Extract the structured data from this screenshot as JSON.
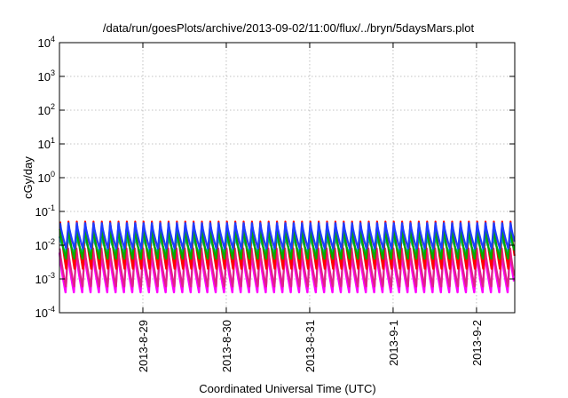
{
  "chart_data": {
    "type": "line",
    "title": "/data/run/goesPlots/archive/2013-09-02/11:00/flux/../bryn/5daysMars.plot",
    "xlabel": "Coordinated Universal Time (UTC)",
    "ylabel": "cGy/day",
    "x_range": [
      "2013-08-28T00:00",
      "2013-09-02T11:00"
    ],
    "x_ticks": [
      "2013-8-29",
      "2013-8-30",
      "2013-8-31",
      "2013-9-1",
      "2013-9-2"
    ],
    "yscale": "log",
    "ylim": [
      0.0001,
      10000
    ],
    "y_ticks": [
      {
        "base": "10",
        "exp": "-4"
      },
      {
        "base": "10",
        "exp": "-3"
      },
      {
        "base": "10",
        "exp": "-2"
      },
      {
        "base": "10",
        "exp": "-1"
      },
      {
        "base": "10",
        "exp": "0"
      },
      {
        "base": "10",
        "exp": "1"
      },
      {
        "base": "10",
        "exp": "2"
      },
      {
        "base": "10",
        "exp": "3"
      },
      {
        "base": "10",
        "exp": "4"
      }
    ],
    "grid": true,
    "legend": "none",
    "cycles_per_day": 10,
    "series": [
      {
        "color": "#ff00ff",
        "peak": 0.006,
        "trough": 0.0004
      },
      {
        "color": "#e0218a",
        "peak": 0.008,
        "trough": 0.0006
      },
      {
        "color": "#ff0000",
        "peak": 0.05,
        "trough": 0.002
      },
      {
        "color": "#00c0c0",
        "peak": 0.018,
        "trough": 0.006
      },
      {
        "color": "#00aa00",
        "peak": 0.03,
        "trough": 0.004
      },
      {
        "color": "#1e3cff",
        "peak": 0.045,
        "trough": 0.008
      }
    ]
  }
}
